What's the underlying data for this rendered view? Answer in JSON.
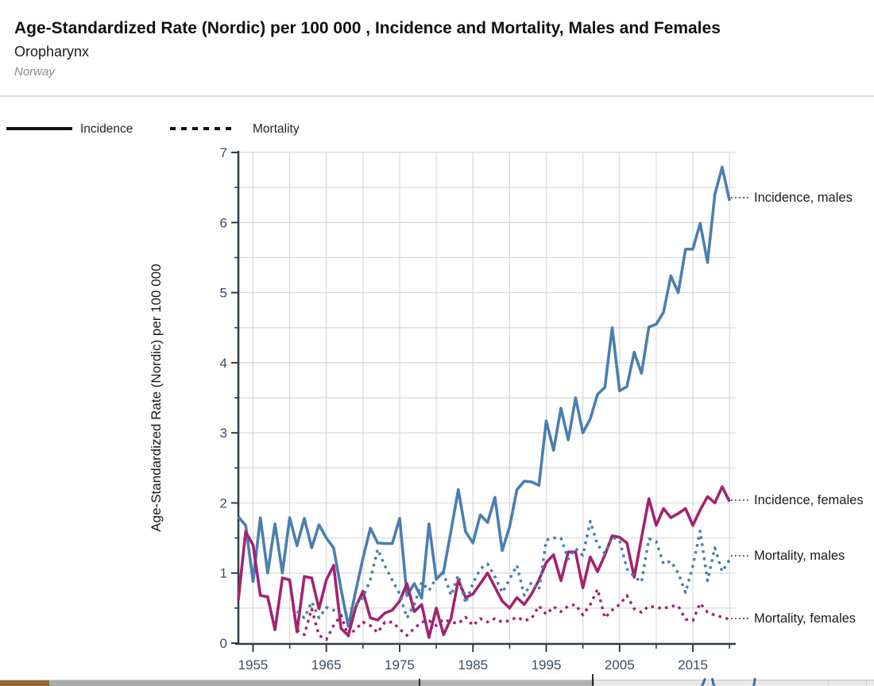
{
  "header": {
    "title": "Age-Standardized Rate (Nordic) per 100 000 , Incidence and Mortality, Males and Females",
    "subtitle": "Oropharynx",
    "region": "Norway"
  },
  "legend": {
    "incidence_label": "Incidence",
    "mortality_label": "Mortality"
  },
  "colors": {
    "males": "#497fb0",
    "females": "#a32370",
    "grid": "#d8d8d8",
    "axis": "#2f3b49",
    "tick_text": "#3d4c63",
    "annotation_text": "#1b1b1b"
  },
  "chart_data": {
    "type": "line",
    "title": "Age-Standardized Rate (Nordic) per 100 000 , Incidence and Mortality, Males and Females",
    "subtitle": "Oropharynx",
    "region": "Norway",
    "xlabel": "",
    "ylabel": "Age-Standardized Rate (Nordic) per 100 000",
    "xlim": [
      1953,
      2020.2
    ],
    "ylim": [
      0,
      7
    ],
    "grid": "on",
    "grid_x_step_years": 5,
    "grid_y_step": 0.5,
    "legend_position": "top-left",
    "x_ticks_major": [
      1955,
      1965,
      1975,
      1985,
      1995,
      2005,
      2015
    ],
    "x_ticks_minor": [
      1960,
      1970,
      1980,
      1990,
      2000,
      2010,
      2020
    ],
    "y_ticks_major": [
      0,
      1,
      2,
      3,
      4,
      5,
      6,
      7
    ],
    "y_tick_minor_step": 0.5,
    "series": [
      {
        "name": "Incidence, males",
        "measure": "Incidence",
        "sex": "males",
        "style": "solid",
        "color": "#497fb0",
        "start_year": 1953,
        "values": [
          1.8,
          1.68,
          0.88,
          1.79,
          1.0,
          1.7,
          1.0,
          1.79,
          1.39,
          1.78,
          1.36,
          1.69,
          1.5,
          1.36,
          0.77,
          0.24,
          0.74,
          1.21,
          1.64,
          1.43,
          1.42,
          1.42,
          1.78,
          0.68,
          0.85,
          0.64,
          1.7,
          0.91,
          1.02,
          1.6,
          2.19,
          1.59,
          1.43,
          1.83,
          1.72,
          2.08,
          1.32,
          1.66,
          2.19,
          2.31,
          2.3,
          2.25,
          3.17,
          2.75,
          3.35,
          2.9,
          3.5,
          3.0,
          3.2,
          3.55,
          3.65,
          4.5,
          3.6,
          3.66,
          4.15,
          3.85,
          4.51,
          4.55,
          4.72,
          5.24,
          5.0,
          5.62,
          5.62,
          5.99,
          5.43,
          6.4,
          6.79,
          6.31
        ]
      },
      {
        "name": "Incidence, females",
        "measure": "Incidence",
        "sex": "females",
        "style": "solid",
        "color": "#a32370",
        "start_year": 1953,
        "values": [
          0.62,
          1.59,
          1.4,
          0.68,
          0.66,
          0.19,
          0.93,
          0.9,
          0.16,
          0.95,
          0.93,
          0.49,
          0.9,
          1.11,
          0.21,
          0.11,
          0.51,
          0.74,
          0.36,
          0.33,
          0.43,
          0.47,
          0.6,
          0.85,
          0.45,
          0.55,
          0.08,
          0.5,
          0.12,
          0.35,
          0.9,
          0.65,
          0.7,
          0.85,
          1.0,
          0.8,
          0.6,
          0.5,
          0.65,
          0.55,
          0.7,
          0.9,
          1.15,
          1.26,
          0.89,
          1.3,
          1.3,
          0.79,
          1.23,
          1.02,
          1.26,
          1.53,
          1.51,
          1.43,
          0.94,
          1.5,
          2.06,
          1.68,
          1.92,
          1.79,
          1.85,
          1.92,
          1.68,
          1.9,
          2.09,
          2.0,
          2.23,
          2.02
        ]
      },
      {
        "name": "Mortality, males",
        "measure": "Mortality",
        "sex": "males",
        "style": "dashed",
        "color": "#497fb0",
        "start_year": 1961,
        "values": [
          0.45,
          0.36,
          0.59,
          0.36,
          0.51,
          0.47,
          0.4,
          0.45,
          0.55,
          0.65,
          0.9,
          1.34,
          1.1,
          0.9,
          0.7,
          0.36,
          0.55,
          0.87,
          0.75,
          0.93,
          1.0,
          0.68,
          0.97,
          0.57,
          0.85,
          1.06,
          1.13,
          0.95,
          0.72,
          0.91,
          1.11,
          0.68,
          0.87,
          0.76,
          1.47,
          1.5,
          1.5,
          1.2,
          1.35,
          1.25,
          1.74,
          1.4,
          1.28,
          1.51,
          1.47,
          1.06,
          0.95,
          0.87,
          1.49,
          1.45,
          1.13,
          1.17,
          1.0,
          0.72,
          1.1,
          1.6,
          0.89,
          1.36,
          1.02,
          1.19
        ]
      },
      {
        "name": "Mortality, females",
        "measure": "Mortality",
        "sex": "females",
        "style": "dashed",
        "color": "#a32370",
        "start_year": 1961,
        "values": [
          0.19,
          0.12,
          0.49,
          0.11,
          0.05,
          0.25,
          0.4,
          0.1,
          0.2,
          0.3,
          0.25,
          0.15,
          0.3,
          0.3,
          0.2,
          0.11,
          0.21,
          0.3,
          0.32,
          0.25,
          0.34,
          0.3,
          0.28,
          0.37,
          0.25,
          0.35,
          0.3,
          0.35,
          0.3,
          0.32,
          0.37,
          0.32,
          0.35,
          0.53,
          0.41,
          0.52,
          0.45,
          0.53,
          0.55,
          0.4,
          0.55,
          0.77,
          0.36,
          0.47,
          0.55,
          0.68,
          0.49,
          0.44,
          0.53,
          0.51,
          0.49,
          0.53,
          0.53,
          0.34,
          0.32,
          0.57,
          0.44,
          0.4,
          0.37,
          0.34
        ]
      }
    ]
  }
}
